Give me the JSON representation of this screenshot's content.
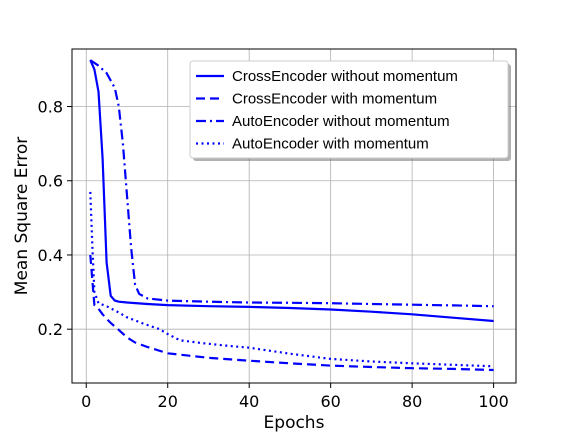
{
  "chart_data": {
    "type": "line",
    "title": "",
    "xlabel": "Epochs",
    "ylabel": "Mean Square Error",
    "xlim": [
      -3.5,
      105.5
    ],
    "ylim": [
      0.055,
      0.955
    ],
    "xticks": [
      0,
      20,
      40,
      60,
      80,
      100
    ],
    "yticks": [
      0.2,
      0.4,
      0.6,
      0.8
    ],
    "xtick_labels": [
      "0",
      "20",
      "40",
      "60",
      "80",
      "100"
    ],
    "ytick_labels": [
      "0.2",
      "0.4",
      "0.6",
      "0.8"
    ],
    "grid": true,
    "legend_position": "top-right",
    "line_color": "#0000ff",
    "series": [
      {
        "name": "CrossEncoder without momentum",
        "style": "solid",
        "x": [
          1,
          2,
          3,
          4,
          5,
          6,
          7,
          8,
          10,
          15,
          20,
          30,
          40,
          50,
          60,
          70,
          80,
          90,
          100
        ],
        "y": [
          0.925,
          0.9,
          0.84,
          0.66,
          0.38,
          0.29,
          0.277,
          0.274,
          0.272,
          0.268,
          0.265,
          0.262,
          0.26,
          0.257,
          0.253,
          0.247,
          0.24,
          0.231,
          0.222
        ]
      },
      {
        "name": "CrossEncoder with momentum",
        "style": "dashed",
        "x": [
          1,
          1.5,
          2,
          3,
          4,
          5,
          6,
          8,
          10,
          12,
          15,
          20,
          30,
          40,
          50,
          60,
          70,
          80,
          90,
          100
        ],
        "y": [
          0.4,
          0.33,
          0.265,
          0.255,
          0.24,
          0.228,
          0.217,
          0.198,
          0.178,
          0.164,
          0.152,
          0.135,
          0.123,
          0.115,
          0.108,
          0.102,
          0.098,
          0.095,
          0.093,
          0.09
        ]
      },
      {
        "name": "AutoEncoder without momentum",
        "style": "dashdot",
        "x": [
          1,
          3,
          5,
          7,
          8,
          9,
          10,
          11,
          12,
          13,
          15,
          20,
          30,
          40,
          50,
          60,
          70,
          80,
          90,
          100
        ],
        "y": [
          0.925,
          0.91,
          0.89,
          0.85,
          0.8,
          0.7,
          0.56,
          0.42,
          0.32,
          0.295,
          0.283,
          0.277,
          0.274,
          0.272,
          0.271,
          0.27,
          0.268,
          0.266,
          0.264,
          0.262
        ]
      },
      {
        "name": "AutoEncoder with momentum",
        "style": "dotted",
        "x": [
          1,
          1.5,
          2,
          3,
          5,
          8,
          10,
          14,
          18,
          20,
          23,
          28,
          35,
          40,
          50,
          60,
          70,
          80,
          90,
          100
        ],
        "y": [
          0.57,
          0.42,
          0.3,
          0.27,
          0.262,
          0.245,
          0.232,
          0.215,
          0.2,
          0.187,
          0.17,
          0.163,
          0.155,
          0.15,
          0.134,
          0.12,
          0.113,
          0.108,
          0.104,
          0.1
        ]
      }
    ]
  }
}
